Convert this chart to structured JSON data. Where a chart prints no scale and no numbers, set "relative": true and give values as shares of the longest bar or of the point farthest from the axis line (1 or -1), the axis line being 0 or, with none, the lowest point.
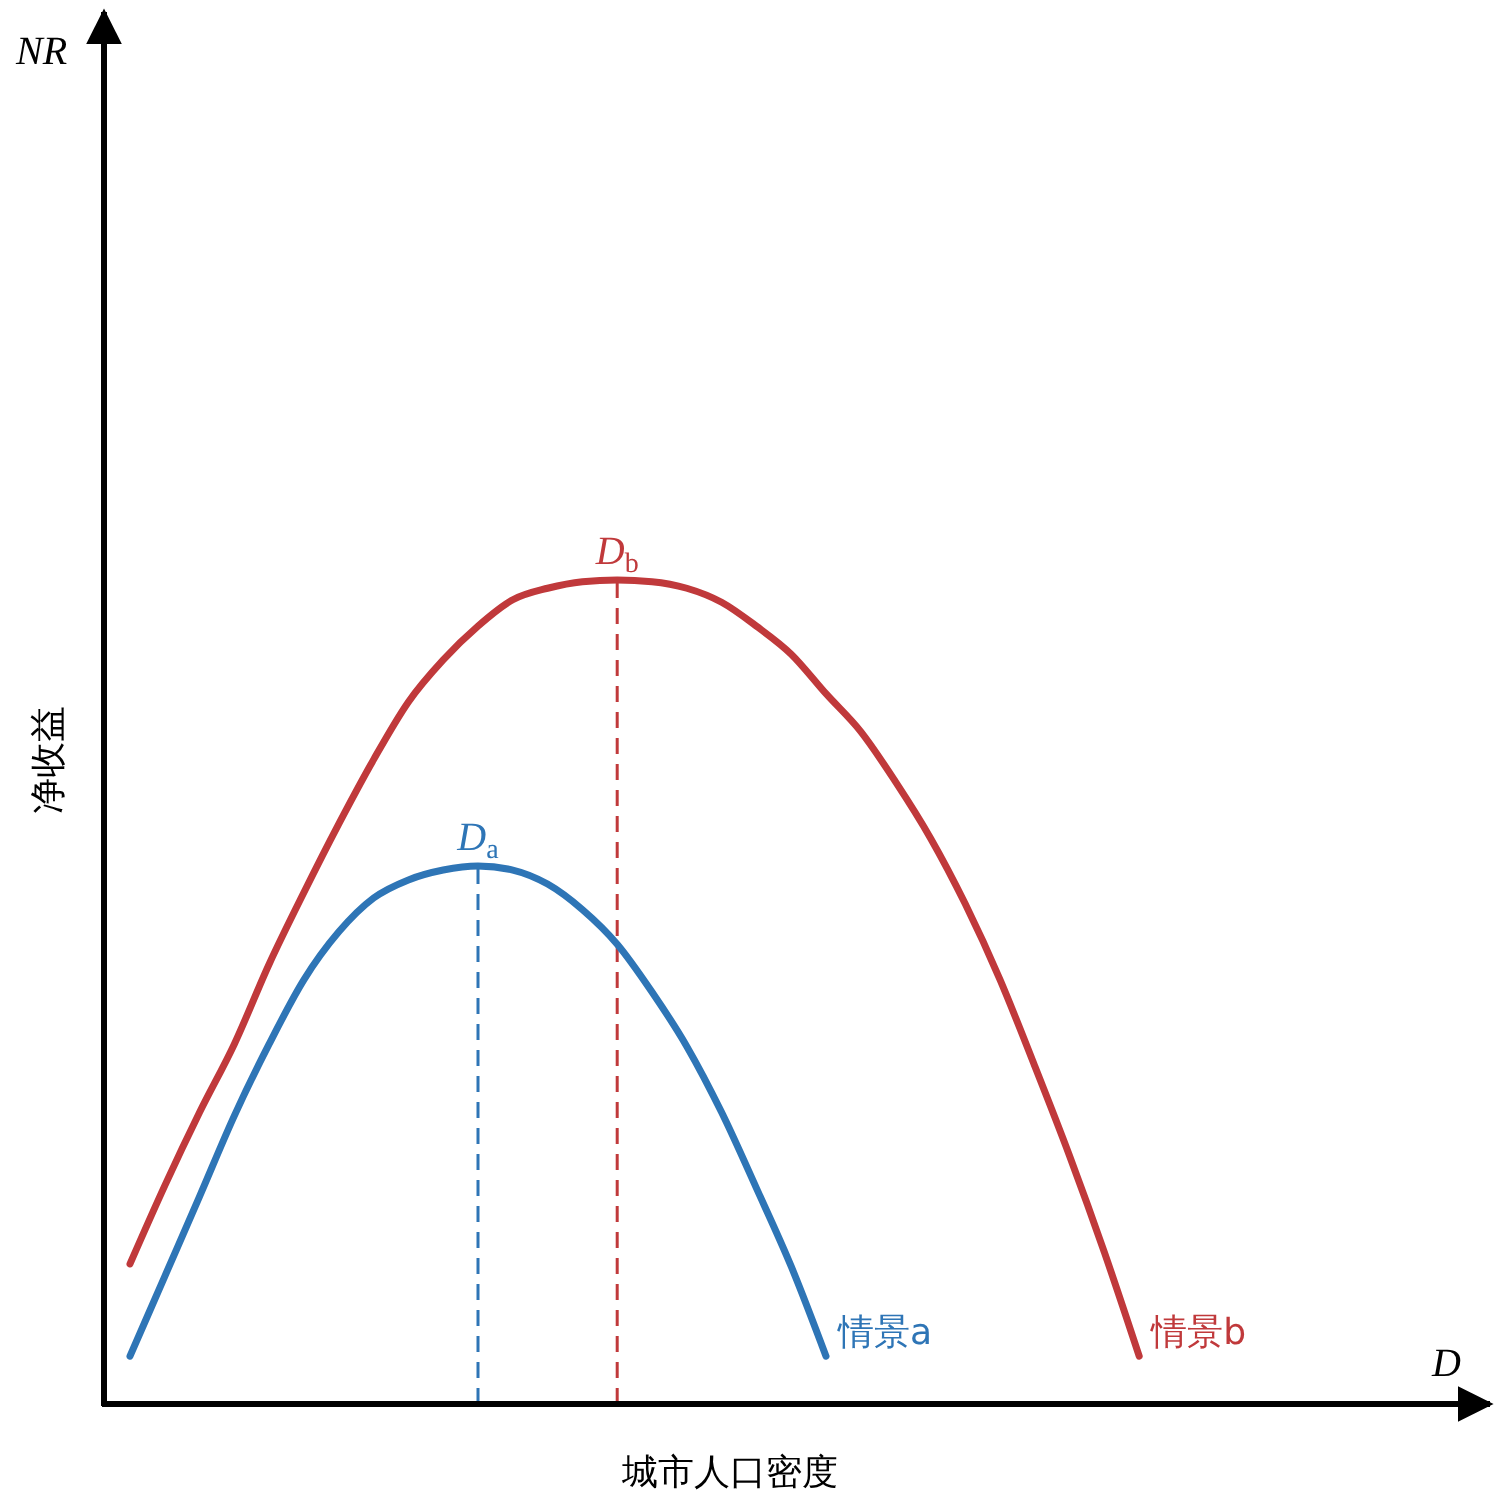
{
  "chart_data": {
    "type": "line",
    "relative": true,
    "xlabel": "城市人口密度",
    "ylabel": "净收益",
    "categories": [
      null,
      null,
      null,
      null,
      null,
      null,
      null,
      null,
      null,
      null,
      null,
      null,
      null,
      null,
      null,
      null,
      null,
      null,
      null,
      null,
      null,
      null,
      null,
      null,
      null,
      null,
      null,
      null,
      null,
      null
    ],
    "series": [
      {
        "name": "情景a",
        "color": "#2e75b6",
        "values": [
          0.058,
          0.155,
          0.252,
          0.35,
          0.437,
          0.515,
          0.573,
          0.614,
          0.636,
          0.648,
          0.653,
          0.648,
          0.631,
          0.6,
          0.558,
          0.5,
          0.434,
          0.354,
          0.262,
          0.167,
          0.058,
          null,
          null,
          null,
          null,
          null,
          null,
          null,
          null,
          null
        ]
      },
      {
        "name": "情景b",
        "color": "#c0393b",
        "values": [
          0.17,
          0.265,
          0.354,
          0.437,
          0.534,
          0.621,
          0.704,
          0.782,
          0.852,
          0.903,
          0.944,
          0.976,
          0.99,
          0.998,
          1.0,
          0.998,
          0.99,
          0.973,
          0.944,
          0.91,
          0.862,
          0.816,
          0.755,
          0.687,
          0.607,
          0.515,
          0.41,
          0.301,
          0.184,
          0.058
        ]
      }
    ],
    "annotations": [
      "NR",
      "D",
      "D$_{a}$",
      "D$_{b}$"
    ],
    "legend": false,
    "grid": false,
    "marker": "none",
    "line_style": "solid"
  }
}
